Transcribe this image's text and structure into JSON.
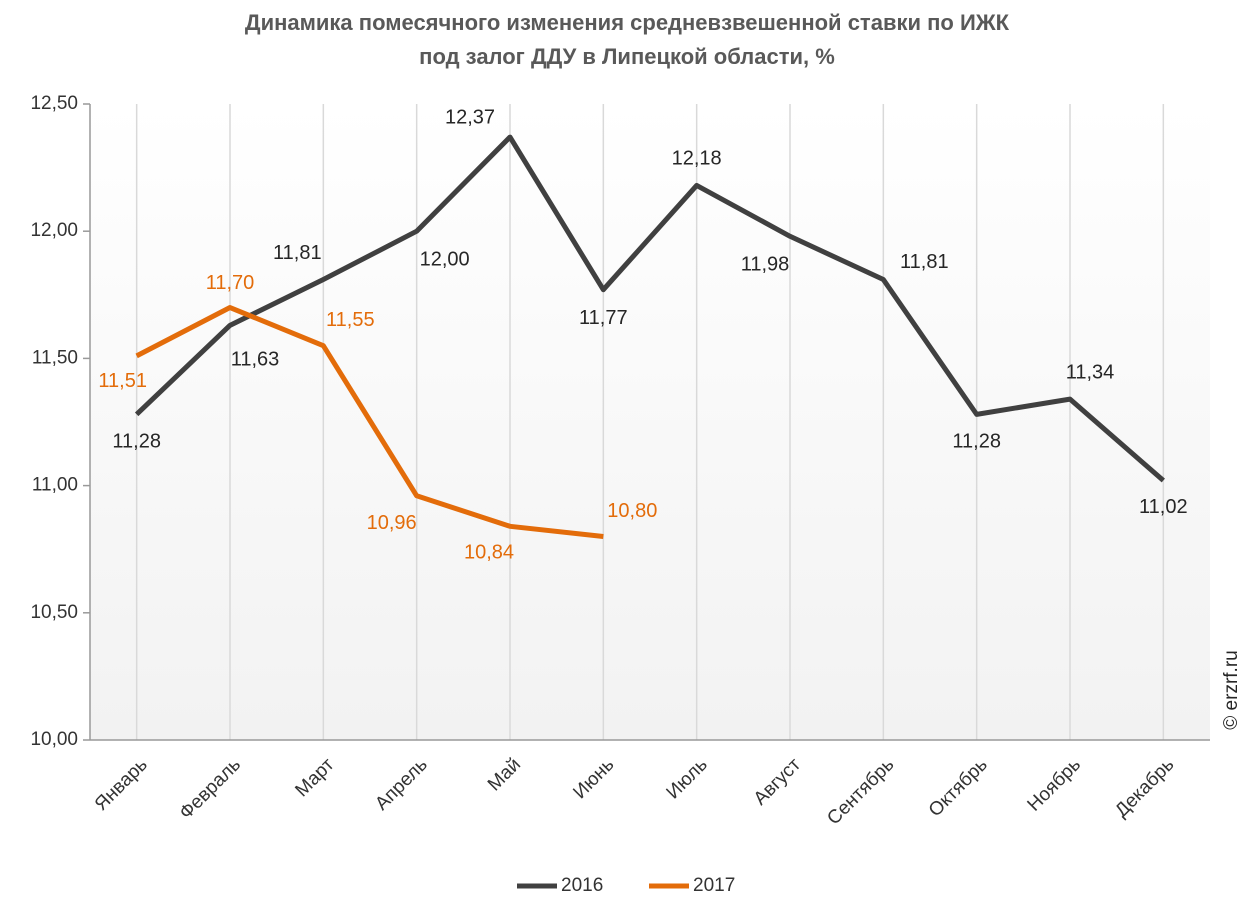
{
  "chart_data": {
    "type": "line",
    "title": [
      "Динамика помесячного изменения средневзвешенной ставки по ИЖК",
      "под залог ДДУ в Липецкой области, %"
    ],
    "watermark": "© erzrf.ru",
    "categories": [
      "Январь",
      "Февраль",
      "Март",
      "Апрель",
      "Май",
      "Июнь",
      "Июль",
      "Август",
      "Сентябрь",
      "Октябрь",
      "Ноябрь",
      "Декабрь"
    ],
    "series": [
      {
        "name": "2016",
        "color": "#404040",
        "values": [
          11.28,
          11.63,
          11.81,
          12.0,
          12.37,
          11.77,
          12.18,
          11.98,
          11.81,
          11.28,
          11.34,
          11.02
        ],
        "value_labels": [
          "11,28",
          "11,63",
          "11,81",
          "12,00",
          "12,37",
          "11,77",
          "12,18",
          "11,98",
          "11,81",
          "11,28",
          "11,34",
          "11,02"
        ]
      },
      {
        "name": "2017",
        "color": "#e36c0a",
        "values": [
          11.51,
          11.7,
          11.55,
          10.96,
          10.84,
          10.8,
          null,
          null,
          null,
          null,
          null,
          null
        ],
        "value_labels": [
          "11,51",
          "11,70",
          "11,55",
          "10,96",
          "10,84",
          "10,80",
          null,
          null,
          null,
          null,
          null,
          null
        ]
      }
    ],
    "ylim": [
      10,
      12.5
    ],
    "yticks": [
      {
        "value": 10,
        "label": "10,00"
      },
      {
        "value": 10.5,
        "label": "10,50"
      },
      {
        "value": 11,
        "label": "11,00"
      },
      {
        "value": 11.5,
        "label": "11,50"
      },
      {
        "value": 12,
        "label": "12,00"
      },
      {
        "value": 12.5,
        "label": "12,50"
      }
    ],
    "grid": "x",
    "legend": "bottom"
  }
}
